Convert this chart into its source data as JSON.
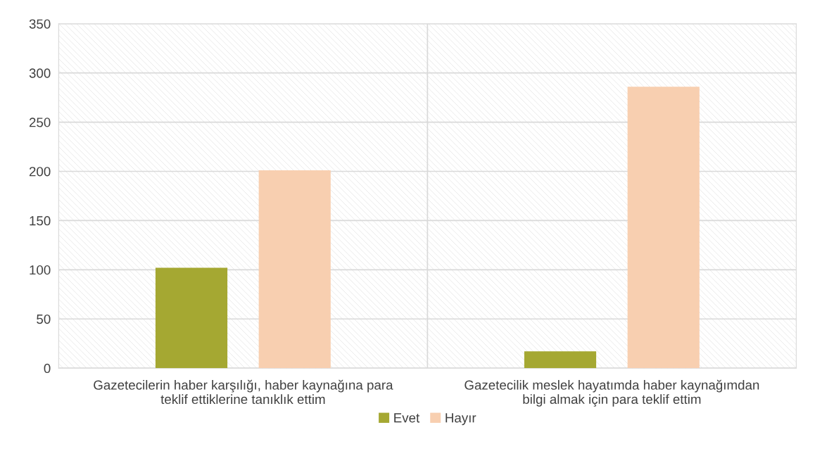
{
  "chart_data": {
    "type": "bar",
    "categories": [
      "Gazetecilerin haber karşılığı, haber kaynağına para\nteklif ettiklerine tanıklık ettim",
      "Gazetecilik meslek hayatımda haber kaynağımdan\nbilgi almak için para teklif ettim"
    ],
    "series": [
      {
        "name": "Evet",
        "color": "#a5a832",
        "values": [
          102,
          17
        ]
      },
      {
        "name": "Hayır",
        "color": "#f8cfb0",
        "values": [
          201,
          286
        ]
      }
    ],
    "ylim": [
      0,
      350
    ],
    "yticks": [
      0,
      50,
      100,
      150,
      200,
      250,
      300,
      350
    ],
    "grid": true,
    "legend": "bottom"
  }
}
